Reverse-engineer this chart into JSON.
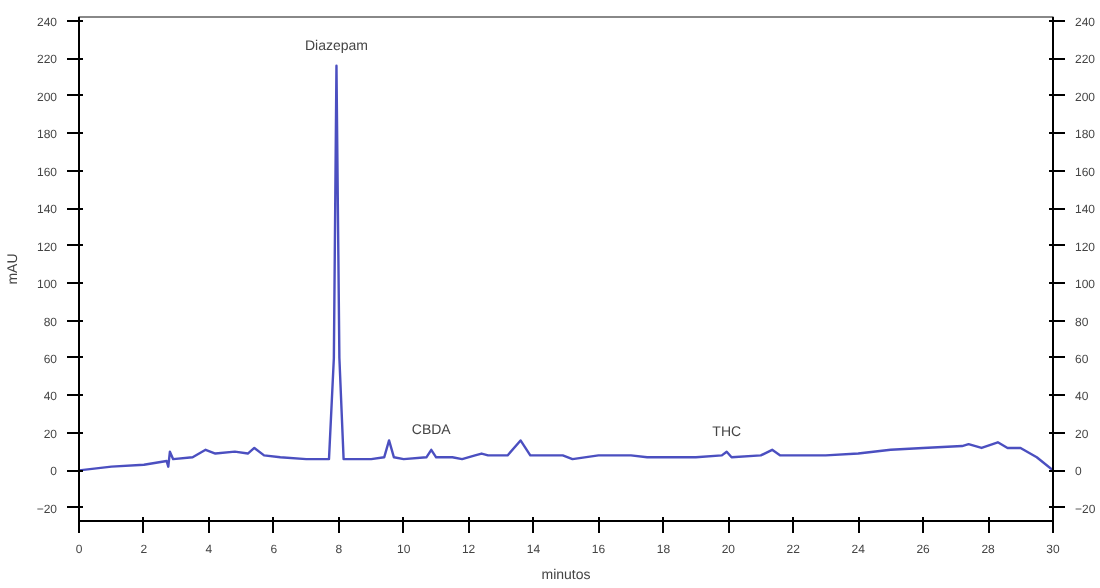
{
  "chart_data": {
    "type": "line",
    "xlabel": "minutos",
    "ylabel": "mAU",
    "x": [
      0,
      1,
      2,
      2.7,
      2.75,
      2.8,
      2.9,
      3.5,
      3.9,
      4.2,
      4.8,
      5.2,
      5.4,
      5.7,
      6.2,
      7,
      7.7,
      7.85,
      7.93,
      8.02,
      8.15,
      9,
      9.4,
      9.55,
      9.7,
      10,
      10.7,
      10.85,
      11,
      11.5,
      11.8,
      12.2,
      12.4,
      12.6,
      13.2,
      13.6,
      13.9,
      14.4,
      14.9,
      15.2,
      16,
      17,
      17.5,
      19,
      19.8,
      19.95,
      20.1,
      21,
      21.35,
      21.6,
      23,
      24,
      25,
      26,
      27.2,
      27.4,
      27.8,
      28.3,
      28.6,
      29,
      29.5,
      30
    ],
    "series": [
      {
        "color": "#4b4fc0",
        "values": [
          0,
          2,
          3,
          5,
          2,
          10,
          6,
          7,
          11,
          9,
          10,
          9,
          12,
          8,
          7,
          6,
          6,
          60,
          216,
          60,
          6,
          6,
          7,
          16,
          7,
          6,
          7,
          11,
          7,
          7,
          6,
          8,
          9,
          8,
          8,
          16,
          8,
          8,
          8,
          6,
          8,
          8,
          7,
          7,
          8,
          10,
          7,
          8,
          11,
          8,
          8,
          9,
          11,
          12,
          13,
          14,
          12,
          15,
          12,
          12,
          7,
          0
        ]
      }
    ],
    "annotations": [
      {
        "text": "Diazepam",
        "x": 7.93,
        "y": 216
      },
      {
        "text": "CBDA",
        "x": 10.85,
        "y": 11
      },
      {
        "text": "THC",
        "x": 19.95,
        "y": 10
      }
    ],
    "xlim": [
      0,
      30
    ],
    "xticks": [
      0,
      2,
      4,
      6,
      8,
      10,
      12,
      14,
      16,
      18,
      20,
      22,
      24,
      26,
      28,
      30
    ],
    "ylim": [
      -27,
      242
    ],
    "yticks": [
      -20,
      0,
      20,
      40,
      60,
      80,
      100,
      120,
      140,
      160,
      180,
      200,
      220,
      240
    ],
    "y2lim": [
      -27,
      242
    ],
    "y2ticks": [
      -20,
      0,
      20,
      40,
      60,
      80,
      100,
      120,
      140,
      160,
      180,
      200,
      220,
      240
    ],
    "grid": false,
    "marker": "none",
    "line_style": "solid"
  }
}
